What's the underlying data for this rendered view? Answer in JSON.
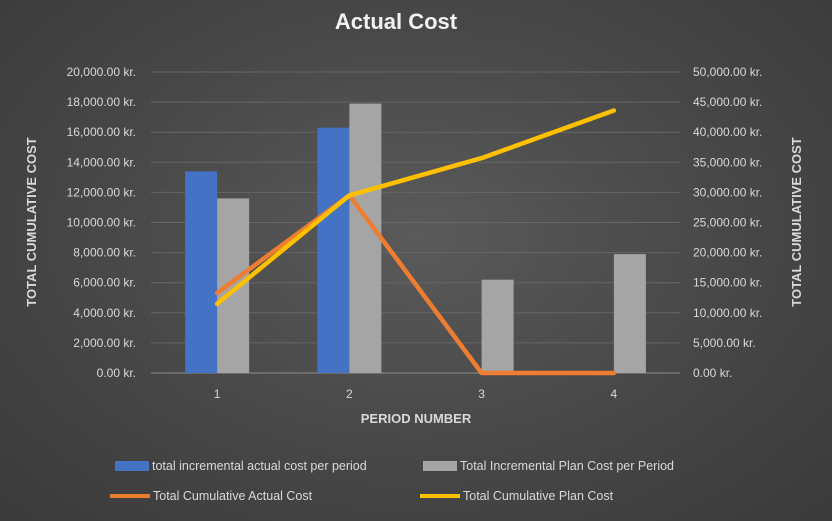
{
  "chart_data": {
    "type": "bar",
    "title": "Actual Cost",
    "xlabel": "PERIOD NUMBER",
    "ylabel_left": "TOTAL CUMULATIVE COST",
    "ylabel_right": "TOTAL CUMULATIVE COST",
    "categories": [
      "1",
      "2",
      "3",
      "4"
    ],
    "ylim_left": [
      0,
      20000
    ],
    "ylim_right": [
      0,
      50000
    ],
    "yticks_left": [
      "0.00 kr.",
      "2,000.00 kr.",
      "4,000.00 kr.",
      "6,000.00 kr.",
      "8,000.00 kr.",
      "10,000.00 kr.",
      "12,000.00 kr.",
      "14,000.00 kr.",
      "16,000.00 kr.",
      "18,000.00 kr.",
      "20,000.00 kr."
    ],
    "yticks_right": [
      "0.00 kr.",
      "5,000.00 kr.",
      "10,000.00 kr.",
      "15,000.00 kr.",
      "20,000.00 kr.",
      "25,000.00 kr.",
      "30,000.00 kr.",
      "35,000.00 kr.",
      "40,000.00 kr.",
      "45,000.00 kr.",
      "50,000.00 kr."
    ],
    "grid": true,
    "legend_position": "bottom",
    "bar_series": [
      {
        "name": "total incremental actual cost per period",
        "axis": "left",
        "color": "#4472c4",
        "values": [
          13400,
          16300,
          null,
          null
        ]
      },
      {
        "name": "Total Incremental Plan Cost per Period",
        "axis": "left",
        "color": "#a5a5a5",
        "values": [
          11600,
          17900,
          6200,
          7900
        ]
      }
    ],
    "line_series": [
      {
        "name": "Total Cumulative Actual Cost",
        "axis": "right",
        "color": "#ed7d31",
        "values": [
          13300,
          29500,
          0,
          0
        ]
      },
      {
        "name": "Total Cumulative Plan Cost",
        "axis": "right",
        "color": "#ffc000",
        "values": [
          11500,
          29500,
          35700,
          43600
        ]
      }
    ]
  }
}
